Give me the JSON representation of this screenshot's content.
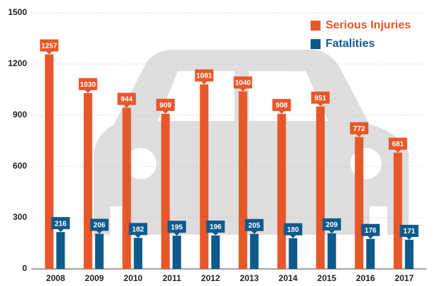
{
  "chart_data": {
    "type": "bar",
    "categories": [
      "2008",
      "2009",
      "2010",
      "2011",
      "2012",
      "2013",
      "2014",
      "2015",
      "2016",
      "2017"
    ],
    "series": [
      {
        "name": "Serious Injuries",
        "color": "#e8572a",
        "values": [
          1257,
          1030,
          944,
          909,
          1081,
          1040,
          908,
          951,
          772,
          681
        ]
      },
      {
        "name": "Fatalities",
        "color": "#0f5a8c",
        "values": [
          216,
          206,
          182,
          195,
          196,
          205,
          180,
          209,
          176,
          171
        ]
      }
    ],
    "ylim": [
      0,
      1500
    ],
    "yticks": [
      0,
      300,
      600,
      900,
      1200,
      1500
    ],
    "grid": true,
    "legend": "upper right",
    "data_labels": true
  }
}
